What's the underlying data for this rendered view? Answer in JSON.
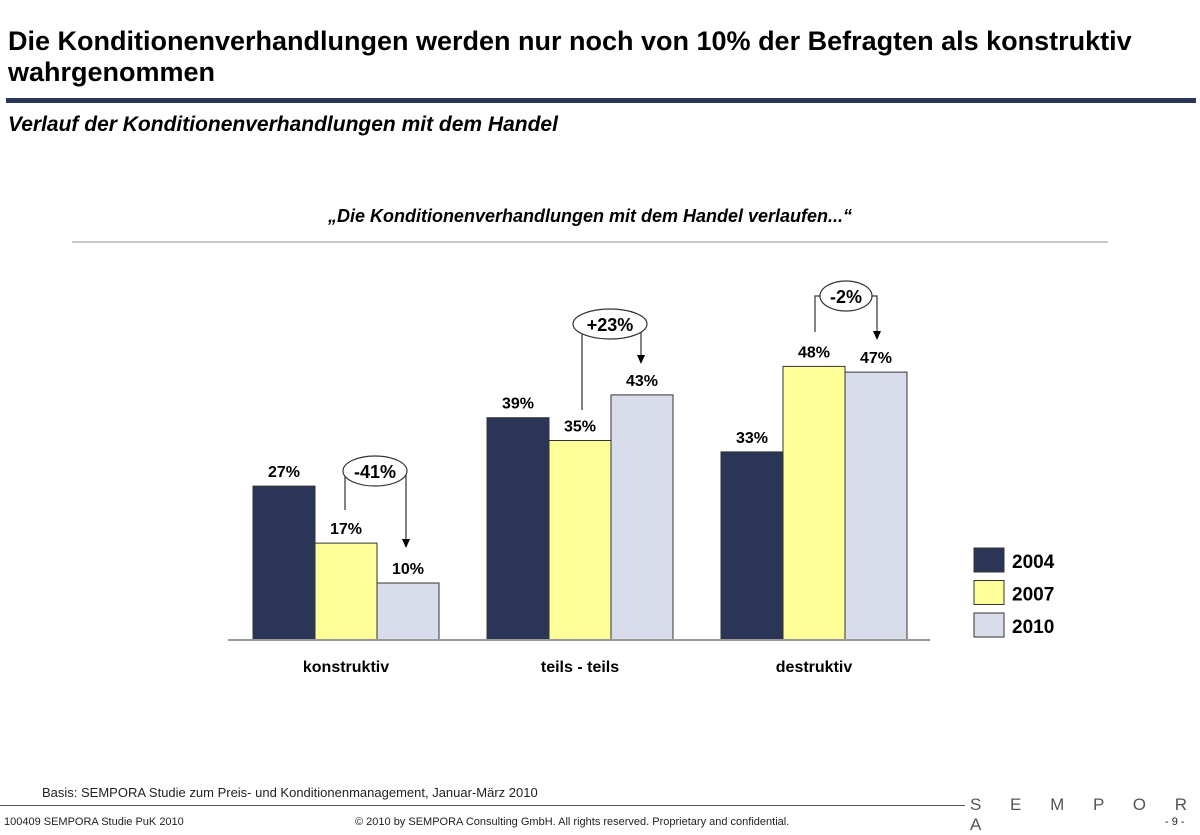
{
  "header": {
    "title": "Die Konditionenverhandlungen werden nur noch von 10% der Befragten als konstruktiv wahrgenommen",
    "subtitle": "Verlauf der Konditionenverhandlungen mit dem Handel"
  },
  "chart_data": {
    "type": "bar",
    "title": "„Die Konditionenverhandlungen mit dem Handel verlaufen...“",
    "categories": [
      "konstruktiv",
      "teils - teils",
      "destruktiv"
    ],
    "series": [
      {
        "name": "2004",
        "values": [
          27,
          39,
          33
        ],
        "labels": [
          "27%",
          "39%",
          "33%"
        ],
        "color": "#2b3558"
      },
      {
        "name": "2007",
        "values": [
          17,
          35,
          48
        ],
        "labels": [
          "17%",
          "35%",
          "48%"
        ],
        "color": "#ffff99"
      },
      {
        "name": "2010",
        "values": [
          10,
          43,
          47
        ],
        "labels": [
          "10%",
          "43%",
          "47%"
        ],
        "color": "#d9dcea"
      }
    ],
    "annotations": [
      "-41%",
      "+23%",
      "-2%"
    ],
    "legend": "right",
    "grid": false,
    "ylim": [
      0,
      50
    ]
  },
  "footer": {
    "basis": "Basis: SEMPORA Studie zum Preis- und Konditionenmanagement, Januar-März 2010",
    "logo": "SEMPORA",
    "left": "100409 SEMPORA Studie PuK 2010",
    "copyright": "© 2010 by SEMPORA Consulting GmbH. All rights reserved. Proprietary and confidential.",
    "page": "- 9 -"
  }
}
